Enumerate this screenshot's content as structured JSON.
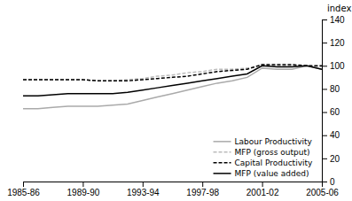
{
  "chart_data": {
    "type": "line",
    "ylabel": "index",
    "x": [
      1985,
      1986,
      1987,
      1988,
      1989,
      1990,
      1991,
      1992,
      1993,
      1994,
      1995,
      1996,
      1997,
      1998,
      1999,
      2000,
      2001,
      2002,
      2003,
      2004,
      2005
    ],
    "series": [
      {
        "name": "Labour Productivity",
        "color": "#aaaaaa",
        "line_style": "solid",
        "values": [
          63,
          63,
          64,
          65,
          65,
          65,
          66,
          67,
          70,
          73,
          76,
          79,
          82,
          85,
          87,
          90,
          98,
          97,
          97,
          100,
          97
        ]
      },
      {
        "name": "MFP (gross output)",
        "color": "#bbbbbb",
        "line_style": "dashed",
        "values": [
          88,
          88,
          88,
          88,
          88,
          87,
          87,
          88,
          89,
          91,
          92,
          94,
          95,
          97,
          97,
          98,
          101,
          100,
          100,
          100,
          99
        ]
      },
      {
        "name": "Capital Productivity",
        "color": "#000000",
        "line_style": "dashed",
        "values": [
          88,
          88,
          88,
          88,
          88,
          87,
          87,
          87,
          88,
          89,
          90,
          91,
          93,
          95,
          96,
          97,
          101,
          101,
          101,
          100,
          100
        ]
      },
      {
        "name": "MFP (value added)",
        "color": "#000000",
        "line_style": "solid",
        "values": [
          74,
          74,
          75,
          76,
          76,
          76,
          76,
          77,
          79,
          81,
          83,
          85,
          87,
          89,
          91,
          93,
          100,
          99,
          99,
          100,
          97
        ]
      }
    ],
    "xlim": [
      1985,
      2005
    ],
    "xticks": [
      {
        "value": 1985,
        "label": "1985-86"
      },
      {
        "value": 1989,
        "label": "1989-90"
      },
      {
        "value": 1993,
        "label": "1993-94"
      },
      {
        "value": 1997,
        "label": "1997-98"
      },
      {
        "value": 2001,
        "label": "2001-02"
      },
      {
        "value": 2005,
        "label": "2005-06"
      }
    ],
    "ylim": [
      0,
      140
    ],
    "yticks": [
      0,
      20,
      40,
      60,
      80,
      100,
      120,
      140
    ],
    "grid": false,
    "legend": "lower right"
  }
}
